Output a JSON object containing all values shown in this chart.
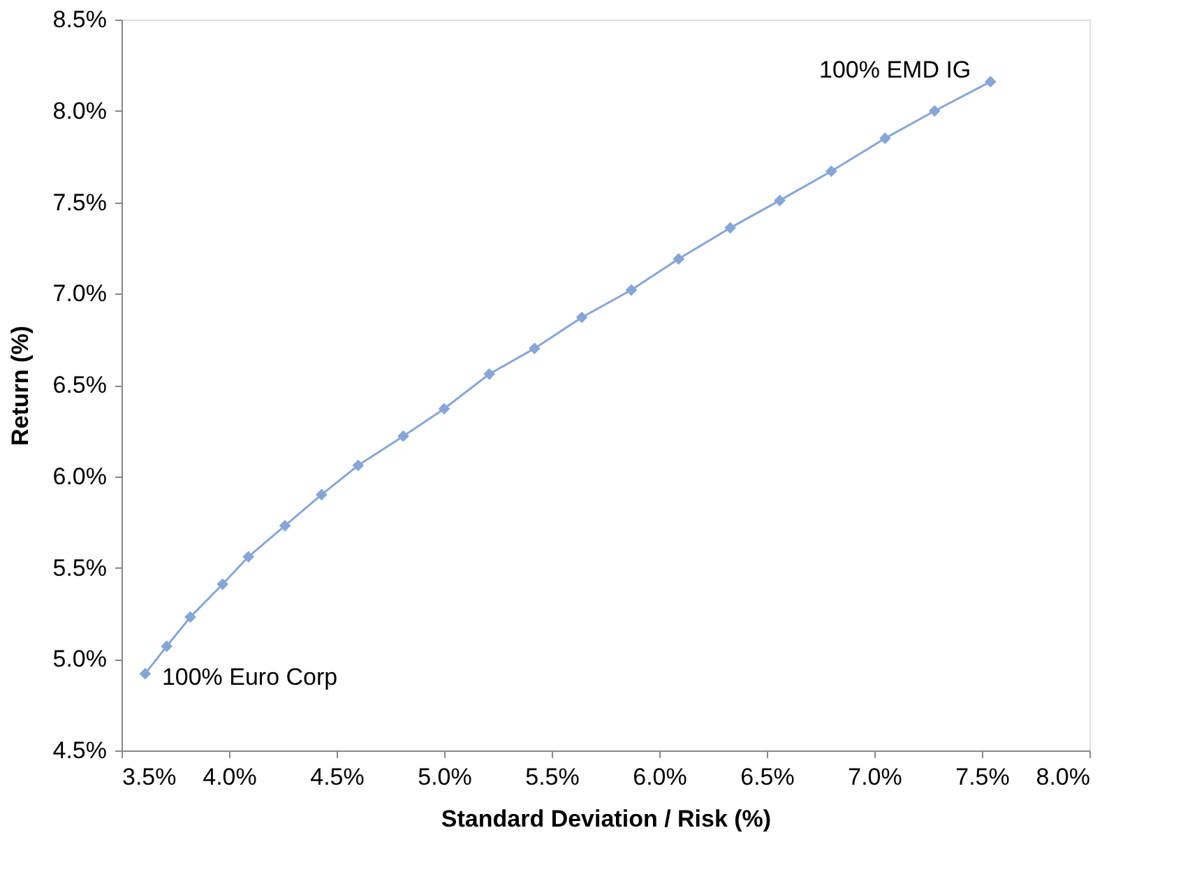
{
  "chart_data": {
    "type": "line",
    "xlabel": "Standard Deviation / Risk (%)",
    "ylabel": "Return (%)",
    "x": [
      3.61,
      3.71,
      3.82,
      3.97,
      4.09,
      4.26,
      4.43,
      4.6,
      4.81,
      5.0,
      5.21,
      5.42,
      5.64,
      5.87,
      6.09,
      6.33,
      6.56,
      6.8,
      7.05,
      7.28,
      7.54
    ],
    "series": [
      {
        "color": "#87a6d6",
        "values": [
          4.92,
          5.07,
          5.23,
          5.41,
          5.56,
          5.73,
          5.9,
          6.06,
          6.22,
          6.37,
          6.56,
          6.7,
          6.87,
          7.02,
          7.19,
          7.36,
          7.51,
          7.67,
          7.85,
          8.0,
          8.16
        ]
      }
    ],
    "xlim": [
      3.5,
      8.0
    ],
    "ylim": [
      4.5,
      8.5
    ],
    "xticks": [
      {
        "value": 3.5,
        "label": "3.5%"
      },
      {
        "value": 4.0,
        "label": "4.0%"
      },
      {
        "value": 4.5,
        "label": "4.5%"
      },
      {
        "value": 5.0,
        "label": "5.0%"
      },
      {
        "value": 5.5,
        "label": "5.5%"
      },
      {
        "value": 6.0,
        "label": "6.0%"
      },
      {
        "value": 6.5,
        "label": "6.5%"
      },
      {
        "value": 7.0,
        "label": "7.0%"
      },
      {
        "value": 7.5,
        "label": "7.5%"
      },
      {
        "value": 8.0,
        "label": "8.0%"
      }
    ],
    "yticks": [
      {
        "value": 4.5,
        "label": "4.5%"
      },
      {
        "value": 5.0,
        "label": "5.0%"
      },
      {
        "value": 5.5,
        "label": "5.5%"
      },
      {
        "value": 6.0,
        "label": "6.0%"
      },
      {
        "value": 6.5,
        "label": "6.5%"
      },
      {
        "value": 7.0,
        "label": "7.0%"
      },
      {
        "value": 7.5,
        "label": "7.5%"
      },
      {
        "value": 8.0,
        "label": "8.0%"
      },
      {
        "value": 8.5,
        "label": "8.5%"
      }
    ],
    "annotations": [
      {
        "text": "100% Euro Corp",
        "x": 3.61,
        "y": 4.92
      },
      {
        "text": "100% EMD IG",
        "x": 7.54,
        "y": 8.16
      }
    ],
    "grid": false,
    "marker": "diamond",
    "line_style": "solid"
  }
}
